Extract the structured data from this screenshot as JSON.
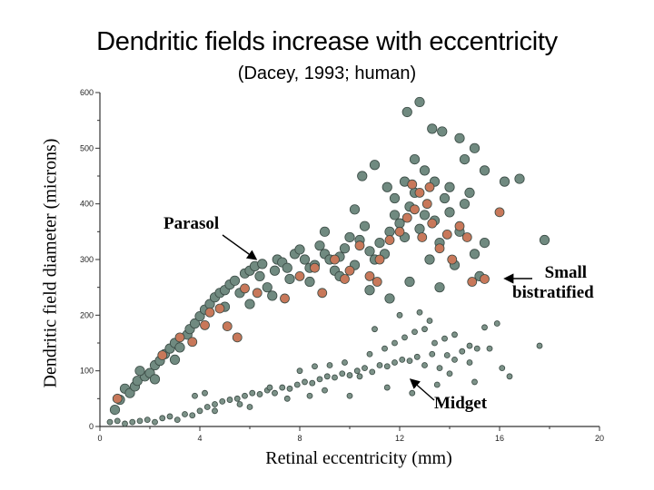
{
  "chart_data": {
    "type": "scatter",
    "title": "Dendritic fields increase with eccentricity",
    "subtitle": "(Dacey, 1993; human)",
    "xlabel": "Retinal eccentricity (mm)",
    "ylabel": "Dendritic field diameter (microns)",
    "xlim": [
      0,
      20
    ],
    "ylim": [
      0,
      600
    ],
    "x_ticks": [
      "0",
      "4",
      "8",
      "12",
      "16",
      "20"
    ],
    "y_ticks": [
      "0",
      "100",
      "200",
      "300",
      "400",
      "500",
      "600"
    ],
    "grid": false,
    "legend": "none",
    "annotations": [
      {
        "id": "parasol",
        "text": "Parasol"
      },
      {
        "id": "small-bistratified",
        "text": "Small bistratified",
        "lines": [
          "Small",
          "bistratified"
        ]
      },
      {
        "id": "midget",
        "text": "Midget"
      }
    ],
    "colors": {
      "parasol": "#708a80",
      "small_bistratified": "#c8785a",
      "midget": "#7c9288",
      "outline": "#3a4a44",
      "axis": "#333333"
    },
    "series": [
      {
        "id": "parasol",
        "points": [
          [
            0.6,
            30
          ],
          [
            0.8,
            48
          ],
          [
            1.0,
            68
          ],
          [
            1.2,
            60
          ],
          [
            1.4,
            72
          ],
          [
            1.5,
            82
          ],
          [
            1.8,
            90
          ],
          [
            2.0,
            96
          ],
          [
            2.2,
            110
          ],
          [
            2.4,
            118
          ],
          [
            2.6,
            130
          ],
          [
            2.8,
            140
          ],
          [
            3.0,
            150
          ],
          [
            3.2,
            142
          ],
          [
            3.5,
            165
          ],
          [
            3.6,
            175
          ],
          [
            3.8,
            185
          ],
          [
            4.0,
            198
          ],
          [
            4.2,
            210
          ],
          [
            4.4,
            220
          ],
          [
            4.6,
            232
          ],
          [
            4.8,
            240
          ],
          [
            5.0,
            245
          ],
          [
            5.2,
            255
          ],
          [
            5.4,
            262
          ],
          [
            5.6,
            240
          ],
          [
            5.8,
            275
          ],
          [
            6.0,
            280
          ],
          [
            6.2,
            288
          ],
          [
            6.4,
            270
          ],
          [
            6.5,
            292
          ],
          [
            6.7,
            250
          ],
          [
            6.9,
            235
          ],
          [
            7.1,
            300
          ],
          [
            7.3,
            295
          ],
          [
            7.5,
            285
          ],
          [
            7.8,
            310
          ],
          [
            8.0,
            318
          ],
          [
            8.2,
            300
          ],
          [
            8.4,
            285
          ],
          [
            8.6,
            290
          ],
          [
            8.8,
            325
          ],
          [
            9.0,
            310
          ],
          [
            9.2,
            300
          ],
          [
            9.4,
            280
          ],
          [
            9.6,
            305
          ],
          [
            9.8,
            320
          ],
          [
            10.0,
            340
          ],
          [
            10.2,
            290
          ],
          [
            10.4,
            335
          ],
          [
            10.6,
            360
          ],
          [
            10.8,
            315
          ],
          [
            11.0,
            300
          ],
          [
            11.2,
            330
          ],
          [
            11.4,
            310
          ],
          [
            11.6,
            350
          ],
          [
            11.8,
            380
          ],
          [
            12.0,
            365
          ],
          [
            12.2,
            340
          ],
          [
            12.4,
            395
          ],
          [
            12.6,
            420
          ],
          [
            12.8,
            355
          ],
          [
            13.0,
            380
          ],
          [
            13.2,
            300
          ],
          [
            13.4,
            370
          ],
          [
            13.6,
            330
          ],
          [
            13.8,
            410
          ],
          [
            14.0,
            385
          ],
          [
            14.2,
            290
          ],
          [
            14.4,
            350
          ],
          [
            14.6,
            400
          ],
          [
            14.8,
            420
          ],
          [
            15.0,
            310
          ],
          [
            15.2,
            270
          ],
          [
            10.5,
            450
          ],
          [
            11.0,
            470
          ],
          [
            11.5,
            430
          ],
          [
            12.2,
            440
          ],
          [
            12.6,
            480
          ],
          [
            13.0,
            460
          ],
          [
            13.4,
            440
          ],
          [
            14.0,
            430
          ],
          [
            14.6,
            480
          ],
          [
            15.4,
            460
          ],
          [
            16.2,
            440
          ],
          [
            17.8,
            335
          ],
          [
            12.3,
            565
          ],
          [
            12.8,
            583
          ],
          [
            13.3,
            535
          ],
          [
            13.7,
            530
          ],
          [
            14.4,
            518
          ],
          [
            15.0,
            500
          ],
          [
            16.8,
            445
          ],
          [
            8.4,
            260
          ],
          [
            9.6,
            270
          ],
          [
            10.8,
            245
          ],
          [
            11.6,
            230
          ],
          [
            12.4,
            260
          ],
          [
            13.6,
            250
          ],
          [
            15.4,
            330
          ],
          [
            3.0,
            120
          ],
          [
            1.6,
            100
          ],
          [
            2.2,
            85
          ],
          [
            5.0,
            215
          ],
          [
            7.0,
            280
          ],
          [
            9.0,
            350
          ],
          [
            10.2,
            390
          ],
          [
            11.8,
            410
          ],
          [
            6.0,
            220
          ],
          [
            7.6,
            265
          ]
        ]
      },
      {
        "id": "small-bistratified",
        "points": [
          [
            0.7,
            50
          ],
          [
            2.5,
            128
          ],
          [
            3.2,
            160
          ],
          [
            3.7,
            152
          ],
          [
            4.2,
            182
          ],
          [
            4.4,
            205
          ],
          [
            4.8,
            212
          ],
          [
            5.1,
            180
          ],
          [
            5.5,
            160
          ],
          [
            5.8,
            248
          ],
          [
            6.3,
            240
          ],
          [
            7.4,
            230
          ],
          [
            8.0,
            270
          ],
          [
            8.6,
            285
          ],
          [
            9.4,
            300
          ],
          [
            10.0,
            280
          ],
          [
            10.4,
            325
          ],
          [
            10.8,
            270
          ],
          [
            11.2,
            300
          ],
          [
            11.6,
            335
          ],
          [
            12.0,
            350
          ],
          [
            12.3,
            375
          ],
          [
            12.6,
            390
          ],
          [
            12.8,
            420
          ],
          [
            13.1,
            400
          ],
          [
            13.3,
            365
          ],
          [
            13.6,
            320
          ],
          [
            13.9,
            345
          ],
          [
            14.1,
            300
          ],
          [
            14.4,
            360
          ],
          [
            14.7,
            340
          ],
          [
            14.9,
            260
          ],
          [
            15.4,
            265
          ],
          [
            16.0,
            385
          ],
          [
            12.5,
            435
          ],
          [
            13.2,
            430
          ],
          [
            12.9,
            340
          ],
          [
            11.1,
            260
          ],
          [
            9.8,
            265
          ],
          [
            8.9,
            240
          ]
        ]
      },
      {
        "id": "midget",
        "points": [
          [
            0.4,
            8
          ],
          [
            0.7,
            10
          ],
          [
            1.0,
            5
          ],
          [
            1.3,
            8
          ],
          [
            1.6,
            10
          ],
          [
            1.9,
            12
          ],
          [
            2.2,
            8
          ],
          [
            2.5,
            15
          ],
          [
            2.8,
            18
          ],
          [
            3.1,
            12
          ],
          [
            3.4,
            22
          ],
          [
            3.7,
            20
          ],
          [
            4.0,
            28
          ],
          [
            4.3,
            35
          ],
          [
            4.6,
            40
          ],
          [
            4.9,
            45
          ],
          [
            5.2,
            48
          ],
          [
            5.5,
            50
          ],
          [
            5.8,
            55
          ],
          [
            6.1,
            60
          ],
          [
            6.4,
            58
          ],
          [
            6.7,
            65
          ],
          [
            7.0,
            60
          ],
          [
            7.3,
            70
          ],
          [
            7.6,
            68
          ],
          [
            7.9,
            75
          ],
          [
            8.2,
            80
          ],
          [
            8.5,
            78
          ],
          [
            8.8,
            85
          ],
          [
            9.1,
            90
          ],
          [
            9.4,
            88
          ],
          [
            9.7,
            95
          ],
          [
            10.0,
            92
          ],
          [
            10.3,
            100
          ],
          [
            10.6,
            105
          ],
          [
            10.9,
            98
          ],
          [
            11.2,
            110
          ],
          [
            11.5,
            108
          ],
          [
            11.8,
            115
          ],
          [
            12.1,
            120
          ],
          [
            12.4,
            118
          ],
          [
            12.7,
            125
          ],
          [
            13.0,
            110
          ],
          [
            13.3,
            130
          ],
          [
            13.6,
            105
          ],
          [
            13.9,
            128
          ],
          [
            14.2,
            120
          ],
          [
            14.5,
            135
          ],
          [
            14.8,
            115
          ],
          [
            15.1,
            140
          ],
          [
            3.8,
            55
          ],
          [
            4.2,
            60
          ],
          [
            5.6,
            40
          ],
          [
            6.8,
            70
          ],
          [
            8.0,
            100
          ],
          [
            8.6,
            108
          ],
          [
            9.2,
            110
          ],
          [
            9.8,
            115
          ],
          [
            10.4,
            90
          ],
          [
            10.8,
            130
          ],
          [
            11.4,
            140
          ],
          [
            11.8,
            150
          ],
          [
            12.2,
            160
          ],
          [
            12.6,
            170
          ],
          [
            13.0,
            175
          ],
          [
            13.4,
            150
          ],
          [
            13.8,
            158
          ],
          [
            14.2,
            165
          ],
          [
            14.8,
            145
          ],
          [
            15.4,
            178
          ],
          [
            15.6,
            140
          ],
          [
            16.1,
            105
          ],
          [
            16.4,
            90
          ],
          [
            17.6,
            145
          ],
          [
            11.0,
            175
          ],
          [
            12.0,
            200
          ],
          [
            12.8,
            205
          ],
          [
            13.2,
            190
          ],
          [
            14.0,
            95
          ],
          [
            15.0,
            80
          ],
          [
            15.9,
            185
          ],
          [
            12.5,
            60
          ],
          [
            13.5,
            75
          ],
          [
            11.5,
            70
          ],
          [
            10.0,
            55
          ],
          [
            9.0,
            65
          ],
          [
            8.4,
            55
          ],
          [
            7.5,
            50
          ],
          [
            6.0,
            35
          ],
          [
            4.6,
            28
          ]
        ]
      }
    ]
  }
}
